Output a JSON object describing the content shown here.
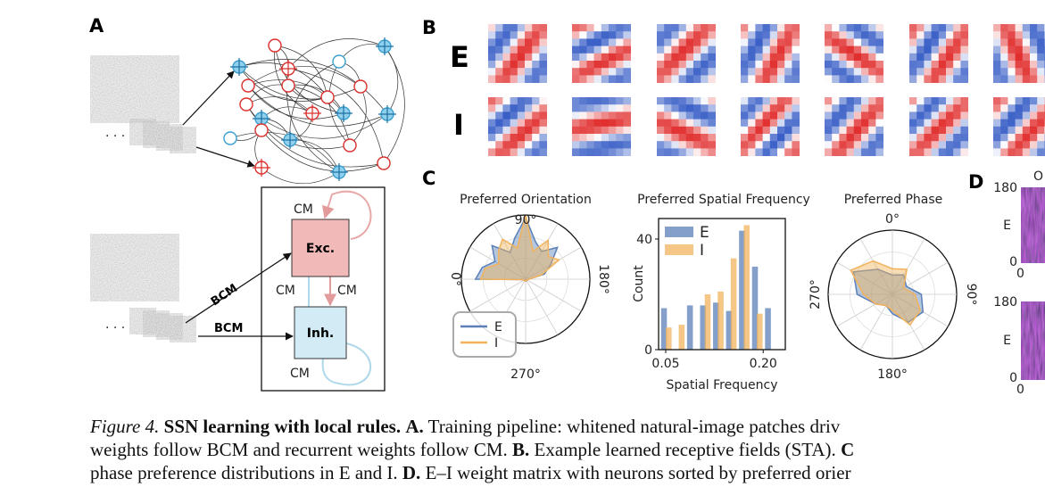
{
  "panel_a": {
    "label": "A",
    "ellipsis": [
      "· · ·",
      "· · ·"
    ],
    "ff_labels": [
      "BCM",
      "BCM"
    ],
    "exc": "Exc.",
    "inh": "Inh.",
    "cm_labels": [
      "CM",
      "CM",
      "CM",
      "CM"
    ]
  },
  "panel_b": {
    "label": "B",
    "rows": [
      "E",
      "I"
    ]
  },
  "panel_c": {
    "label": "C",
    "orientation": {
      "type": "polar",
      "title": "Preferred Orientation",
      "angle_labels": [
        "90°",
        "180°",
        "270°",
        "0°"
      ],
      "theta": [
        0,
        15,
        30,
        45,
        60,
        75,
        90,
        105,
        120,
        135,
        150,
        165,
        180,
        195,
        210,
        225,
        240,
        255,
        270,
        285,
        300,
        315,
        330,
        345
      ],
      "series": [
        {
          "name": "E",
          "color": "#5b80b8",
          "values": [
            0.78,
            0.7,
            0.55,
            0.74,
            0.48,
            0.66,
            0.96,
            0.6,
            0.5,
            0.7,
            0.45,
            0.3,
            0.05,
            0.03,
            0.03,
            0.03,
            0.03,
            0.03,
            0.03,
            0.03,
            0.03,
            0.03,
            0.03,
            0.03
          ]
        },
        {
          "name": "I",
          "color": "#f2b35c",
          "values": [
            0.7,
            0.65,
            0.48,
            0.6,
            0.72,
            0.5,
            1.0,
            0.45,
            0.7,
            0.5,
            0.6,
            0.25,
            0.05,
            0.03,
            0.03,
            0.03,
            0.03,
            0.03,
            0.03,
            0.03,
            0.03,
            0.03,
            0.03,
            0.03
          ]
        }
      ]
    },
    "frequency": {
      "type": "bar",
      "title": "Preferred Spatial Frequency",
      "ylabel": "Count",
      "xlabel": "Spatial Frequency",
      "x": [
        0.05,
        0.07,
        0.09,
        0.11,
        0.13,
        0.15,
        0.17,
        0.19,
        0.21
      ],
      "series": [
        {
          "name": "E",
          "color": "#5b80b8",
          "values": [
            15,
            0,
            16,
            16,
            17,
            14,
            43,
            30,
            15
          ]
        },
        {
          "name": "I",
          "color": "#f2b35c",
          "values": [
            8,
            9,
            0,
            20,
            21,
            33,
            45,
            13,
            0
          ]
        }
      ],
      "xlim": [
        0.039,
        0.234
      ],
      "ylim": [
        0,
        47.4
      ],
      "xticks": [
        0.05,
        {
          "value": 0.2,
          "label": "0.20"
        }
      ],
      "yticks": [
        0,
        40
      ]
    },
    "phase": {
      "type": "polar",
      "title": "Preferred Phase",
      "angle_labels": [
        "0°",
        "90°",
        "180°",
        "270°"
      ],
      "theta": [
        0,
        30,
        60,
        90,
        120,
        150,
        180,
        210,
        240,
        270,
        300,
        330
      ],
      "series": [
        {
          "name": "E",
          "color": "#5b80b8",
          "values": [
            0.3,
            0.35,
            0.25,
            0.45,
            0.55,
            0.5,
            0.3,
            0.2,
            0.3,
            0.55,
            0.7,
            0.45
          ]
        },
        {
          "name": "I",
          "color": "#f2b35c",
          "values": [
            0.4,
            0.45,
            0.2,
            0.35,
            0.5,
            0.55,
            0.25,
            0.2,
            0.3,
            0.45,
            0.75,
            0.6
          ]
        }
      ]
    }
  },
  "panel_d": {
    "label": "D",
    "title_fragment": "O",
    "rows": [
      {
        "top": "180",
        "name": "E",
        "bottom": "0",
        "x0": "0"
      },
      {
        "top": "180",
        "name": "E",
        "bottom": "0",
        "x0": "0"
      }
    ]
  },
  "caption": {
    "lines": [
      [
        {
          "t": "Figure 4.",
          "s": "i"
        },
        {
          "t": " ",
          "s": ""
        },
        {
          "t": "SSN learning with local rules.",
          "s": "b"
        },
        {
          "t": " ",
          "s": ""
        },
        {
          "t": "A.",
          "s": "b"
        },
        {
          "t": " Training pipeline: whitened natural-image patches driv",
          "s": ""
        }
      ],
      [
        {
          "t": "weights follow BCM and recurrent weights follow CM. ",
          "s": ""
        },
        {
          "t": "B.",
          "s": "b"
        },
        {
          "t": " Example learned receptive fields (STA). ",
          "s": ""
        },
        {
          "t": "C",
          "s": "b"
        }
      ],
      [
        {
          "t": "phase preference distributions in E and I. ",
          "s": ""
        },
        {
          "t": "D.",
          "s": "b"
        },
        {
          "t": " E–I weight matrix with neurons sorted by preferred orier",
          "s": ""
        }
      ]
    ]
  }
}
